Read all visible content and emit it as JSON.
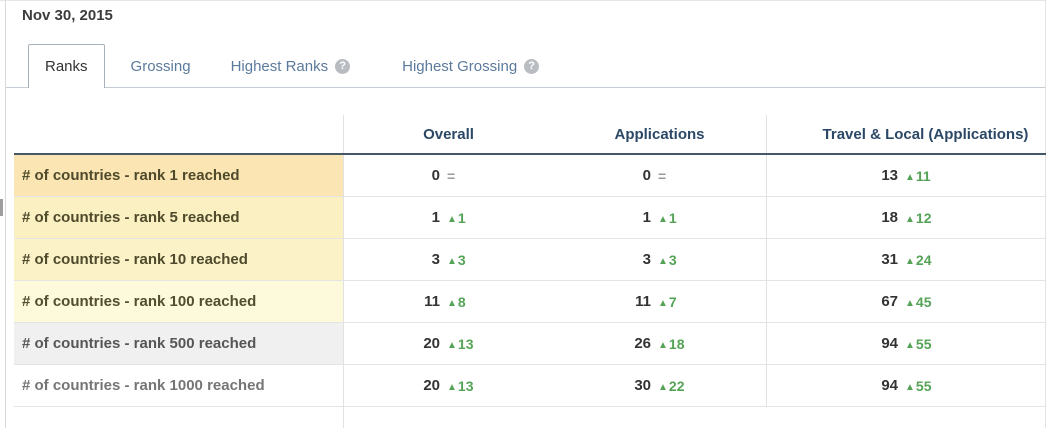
{
  "page": {
    "date": "Nov 30, 2015"
  },
  "icons": {
    "help": "?"
  },
  "colors": {
    "accent_green": "#55a356",
    "flat_gray": "#9b9b9b",
    "header_navy": "#2b4866",
    "tab_blue": "#5b7a9c",
    "row_tint_1": "#fbe5b2",
    "row_tint_2": "#fbf0c2",
    "row_tint_3": "#fbf2c8",
    "row_tint_4": "#fdfadb",
    "row_tint_5": "#f0f0f0"
  },
  "tabs": [
    {
      "label": "Ranks",
      "active": true,
      "has_help": false
    },
    {
      "label": "Grossing",
      "active": false,
      "has_help": false
    },
    {
      "label": "Highest Ranks",
      "active": false,
      "has_help": true
    },
    {
      "label": "Highest Grossing",
      "active": false,
      "has_help": true
    }
  ],
  "table": {
    "columns": [
      "Overall",
      "Applications",
      "Travel & Local (Applications)"
    ],
    "rows": [
      {
        "label": "# of countries - rank 1 reached",
        "cells": [
          {
            "value": "0",
            "change": "=",
            "dir": "flat"
          },
          {
            "value": "0",
            "change": "=",
            "dir": "flat"
          },
          {
            "value": "13",
            "change": "11",
            "dir": "up"
          }
        ]
      },
      {
        "label": "# of countries - rank 5 reached",
        "cells": [
          {
            "value": "1",
            "change": "1",
            "dir": "up"
          },
          {
            "value": "1",
            "change": "1",
            "dir": "up"
          },
          {
            "value": "18",
            "change": "12",
            "dir": "up"
          }
        ]
      },
      {
        "label": "# of countries - rank 10 reached",
        "cells": [
          {
            "value": "3",
            "change": "3",
            "dir": "up"
          },
          {
            "value": "3",
            "change": "3",
            "dir": "up"
          },
          {
            "value": "31",
            "change": "24",
            "dir": "up"
          }
        ]
      },
      {
        "label": "# of countries - rank 100 reached",
        "cells": [
          {
            "value": "11",
            "change": "8",
            "dir": "up"
          },
          {
            "value": "11",
            "change": "7",
            "dir": "up"
          },
          {
            "value": "67",
            "change": "45",
            "dir": "up"
          }
        ]
      },
      {
        "label": "# of countries - rank 500 reached",
        "cells": [
          {
            "value": "20",
            "change": "13",
            "dir": "up"
          },
          {
            "value": "26",
            "change": "18",
            "dir": "up"
          },
          {
            "value": "94",
            "change": "55",
            "dir": "up"
          }
        ]
      },
      {
        "label": "# of countries - rank 1000 reached",
        "cells": [
          {
            "value": "20",
            "change": "13",
            "dir": "up"
          },
          {
            "value": "30",
            "change": "22",
            "dir": "up"
          },
          {
            "value": "94",
            "change": "55",
            "dir": "up"
          }
        ]
      }
    ]
  }
}
